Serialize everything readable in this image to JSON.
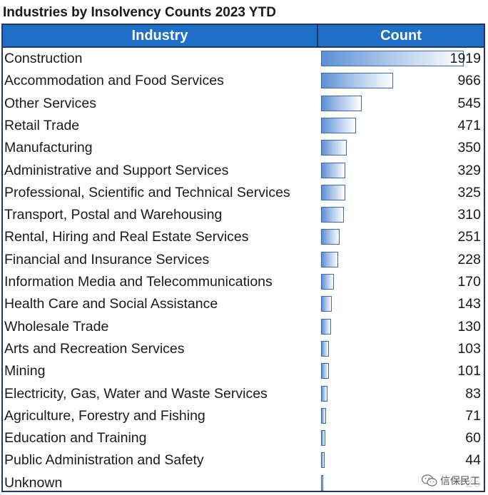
{
  "title": "Industries by Insolvency Counts 2023 YTD",
  "headers": {
    "industry": "Industry",
    "count": "Count"
  },
  "watermark": {
    "text": "信保民工",
    "icon": "wechat-icon"
  },
  "colors": {
    "header_bg": "#1f6fc9",
    "border": "#1f3864",
    "bar_fill": "#5b8fd6",
    "bar_border": "#3a6ab0"
  },
  "chart_data": {
    "type": "bar",
    "title": "Industries by Insolvency Counts 2023 YTD",
    "orientation": "horizontal",
    "categories": [
      "Construction",
      "Accommodation and Food Services",
      "Other Services",
      "Retail Trade",
      "Manufacturing",
      "Administrative and Support Services",
      "Professional, Scientific and Technical Services",
      "Transport, Postal and Warehousing",
      "Rental, Hiring and Real Estate Services",
      "Financial and Insurance Services",
      "Information Media and Telecommunications",
      "Health Care and Social Assistance",
      "Wholesale Trade",
      "Arts and Recreation Services",
      "Mining",
      "Electricity, Gas, Water and Waste Services",
      "Agriculture, Forestry and Fishing",
      "Education and Training",
      "Public Administration and Safety",
      "Unknown"
    ],
    "values": [
      1919,
      966,
      545,
      471,
      350,
      329,
      325,
      310,
      251,
      228,
      170,
      143,
      130,
      103,
      101,
      83,
      71,
      60,
      44,
      26
    ],
    "xlabel": "",
    "ylabel": "",
    "xlim": [
      0,
      1919
    ],
    "grid": false,
    "legend": "none"
  }
}
